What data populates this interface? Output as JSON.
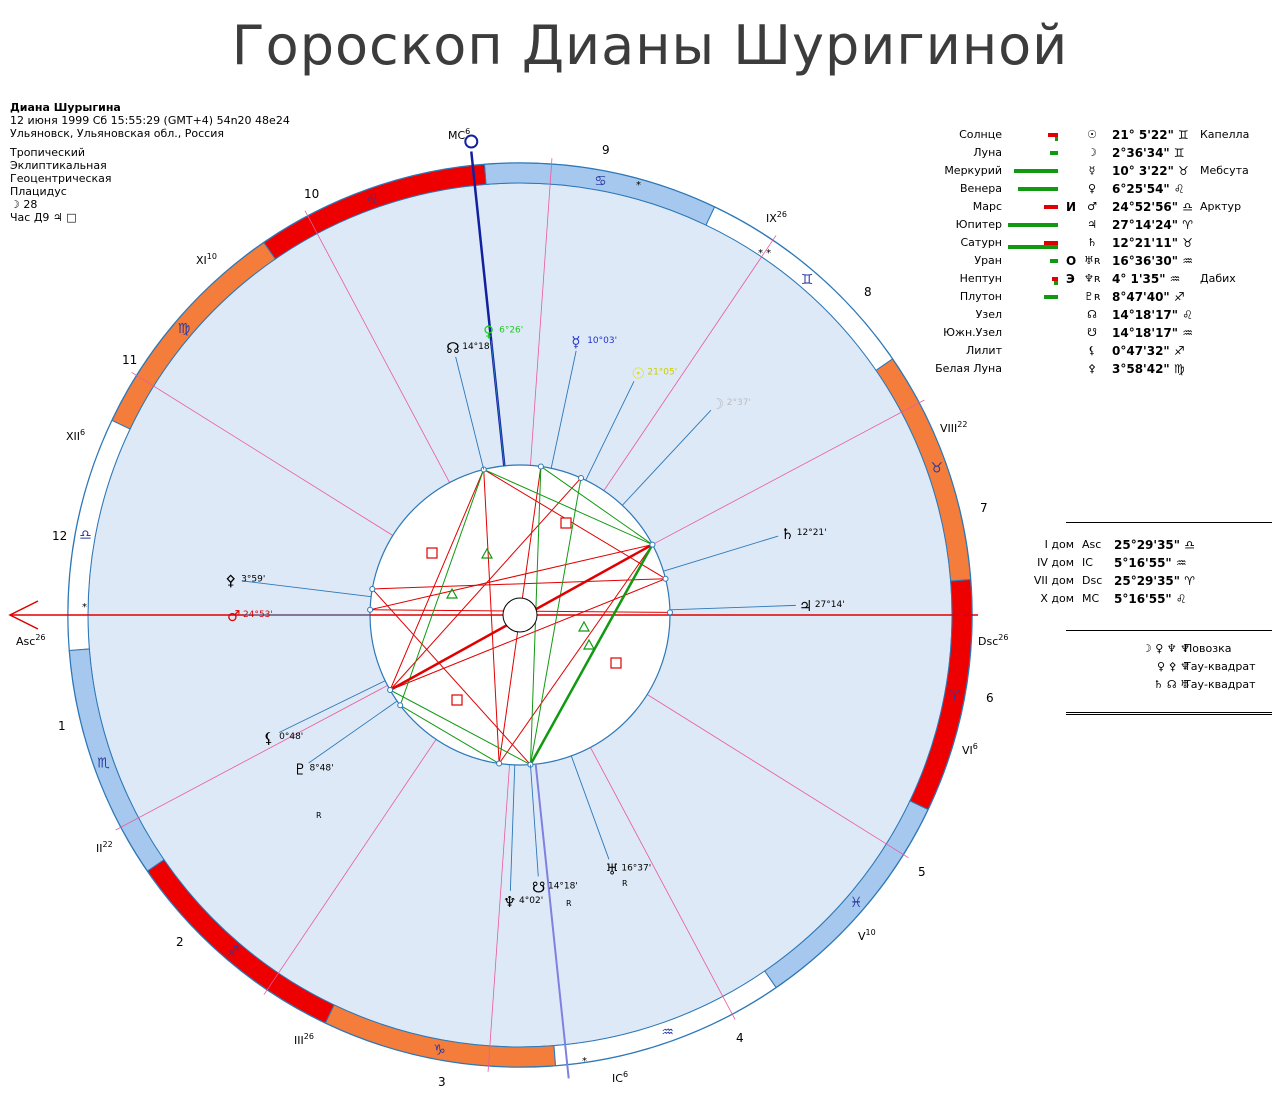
{
  "title": "Гороскоп Дианы Шуригиной",
  "header": {
    "name": "Диана Шурыгина",
    "datetime": "12 июня 1999  Сб  15:55:29 (GMT+4) 54n20  48e24",
    "place": "Ульяновск, Ульяновская обл., Россия",
    "zodiac": "Тропический",
    "coords": "Эклиптикальная",
    "center": "Геоцентрическая",
    "houses": "Плацидус",
    "moon_day": "☽  28",
    "hour": "Час Д9  ♃  □"
  },
  "planets": [
    {
      "name": "Солнце",
      "glyph": "☉",
      "value": "21° 5'22\" ♊",
      "mark": "",
      "star": "Капелла",
      "bar": [
        {
          "c": "#e00000",
          "w": 10
        },
        {
          "c": "#119911",
          "w": 3
        }
      ]
    },
    {
      "name": "Луна",
      "glyph": "☽",
      "value": "2°36'34\" ♊",
      "mark": "",
      "star": "",
      "bar": [
        {
          "c": "#119911",
          "w": 8
        }
      ]
    },
    {
      "name": "Меркурий",
      "glyph": "☿",
      "value": "10° 3'22\" ♉",
      "mark": "",
      "star": "Мебсута",
      "bar": [
        {
          "c": "#119911",
          "w": 44
        }
      ]
    },
    {
      "name": "Венера",
      "glyph": "♀",
      "value": "6°25'54\" ♌",
      "mark": "",
      "star": "",
      "bar": [
        {
          "c": "#119911",
          "w": 40
        }
      ]
    },
    {
      "name": "Марс",
      "glyph": "♂",
      "value": "24°52'56\" ♎",
      "mark": "И",
      "star": "Арктур",
      "bar": [
        {
          "c": "#e00000",
          "w": 14
        }
      ]
    },
    {
      "name": "Юпитер",
      "glyph": "♃",
      "value": "27°14'24\" ♈",
      "mark": "",
      "star": "",
      "bar": [
        {
          "c": "#119911",
          "w": 50
        }
      ]
    },
    {
      "name": "Сатурн",
      "glyph": "♄",
      "value": "12°21'11\" ♉",
      "mark": "",
      "star": "",
      "bar": [
        {
          "c": "#e00000",
          "w": 14
        },
        {
          "c": "#119911",
          "w": 50
        }
      ]
    },
    {
      "name": "Уран",
      "glyph": "♅ʀ",
      "value": "16°36'30\" ♒",
      "mark": "О",
      "star": "",
      "bar": [
        {
          "c": "#119911",
          "w": 8
        }
      ]
    },
    {
      "name": "Нептун",
      "glyph": "♆ʀ",
      "value": "4° 1'35\" ♒",
      "mark": "Э",
      "star": "Дабих",
      "bar": [
        {
          "c": "#e00000",
          "w": 6
        },
        {
          "c": "#119911",
          "w": 4
        }
      ]
    },
    {
      "name": "Плутон",
      "glyph": "♇ʀ",
      "value": "8°47'40\" ♐",
      "mark": "",
      "star": "",
      "bar": [
        {
          "c": "#119911",
          "w": 14
        }
      ]
    },
    {
      "name": "Узел",
      "glyph": "☊",
      "value": "14°18'17\" ♌",
      "mark": "",
      "star": "",
      "bar": []
    },
    {
      "name": "Южн.Узел",
      "glyph": "☋",
      "value": "14°18'17\" ♒",
      "mark": "",
      "star": "",
      "bar": []
    },
    {
      "name": "Лилит",
      "glyph": "⚸",
      "value": "0°47'32\" ♐",
      "mark": "",
      "star": "",
      "bar": []
    },
    {
      "name": "Белая Луна",
      "glyph": "⚴",
      "value": "3°58'42\" ♍",
      "mark": "",
      "star": "",
      "bar": []
    }
  ],
  "houses_table": [
    {
      "name": "I дом",
      "glyph": "Asc",
      "value": "25°29'35\" ♎"
    },
    {
      "name": "IV дом",
      "glyph": "IC",
      "value": "5°16'55\" ♒"
    },
    {
      "name": "VII дом",
      "glyph": "Dsc",
      "value": "25°29'35\" ♈"
    },
    {
      "name": "X дом",
      "glyph": "MC",
      "value": "5°16'55\" ♌"
    }
  ],
  "aspect_figures": [
    {
      "glyphs": "☽ ♀ ♆ ♆",
      "name": "Повозка"
    },
    {
      "glyphs": "♀ ⚴ ♆",
      "name": "Тау-квадрат"
    },
    {
      "glyphs": "♄ ☊ ♅",
      "name": "Тау-квадрат"
    }
  ],
  "chart_data": {
    "type": "diagram",
    "ascendant": "Asc",
    "descendant": "Dsc",
    "mc": "MC",
    "ic": "IC",
    "asc_exp": "26",
    "dsc_exp": "26",
    "mc_exp": "6",
    "ic_exp": "6",
    "house_cusps": [
      {
        "label": "II",
        "exp": "22"
      },
      {
        "label": "III",
        "exp": "26"
      },
      {
        "label": "V",
        "exp": "10"
      },
      {
        "label": "VI",
        "exp": "6"
      },
      {
        "label": "VIII",
        "exp": "22"
      },
      {
        "label": "IX",
        "exp": "26"
      },
      {
        "label": "XI",
        "exp": "10"
      },
      {
        "label": "XII",
        "exp": "6"
      }
    ],
    "house_numbers": [
      "1",
      "2",
      "3",
      "4",
      "5",
      "6",
      "7",
      "8",
      "9",
      "10",
      "11",
      "12"
    ],
    "chart_planets": [
      {
        "glyph": "☊",
        "text": "14°18'",
        "color": "#000000"
      },
      {
        "glyph": "♀",
        "text": "6°26'",
        "color": "#22cc22"
      },
      {
        "glyph": "☿",
        "text": "10°03'",
        "color": "#2233cc"
      },
      {
        "glyph": "☉",
        "text": "21°05'",
        "color": "#e0e000"
      },
      {
        "glyph": "☽",
        "text": "2°37'",
        "color": "#bbbbbb"
      },
      {
        "glyph": "♄",
        "text": "12°21'",
        "color": "#000000"
      },
      {
        "glyph": "♃",
        "text": "27°14'",
        "color": "#000000"
      },
      {
        "glyph": "♂",
        "text": "24°53'",
        "color": "#e00000"
      },
      {
        "glyph": "⚴",
        "text": "3°59'",
        "color": "#000000"
      },
      {
        "glyph": "⚸",
        "text": "0°48'",
        "color": "#000000"
      },
      {
        "glyph": "♇",
        "text": "8°48'",
        "color": "#000000"
      },
      {
        "glyph": "♆",
        "text": "4°02'",
        "color": "#000000"
      },
      {
        "glyph": "☋",
        "text": "14°18'",
        "color": "#000000"
      },
      {
        "glyph": "♅",
        "text": "16°37'",
        "color": "#000000"
      }
    ],
    "retro_mark": "R",
    "star_mark": "*",
    "double_star_mark": "* *"
  }
}
